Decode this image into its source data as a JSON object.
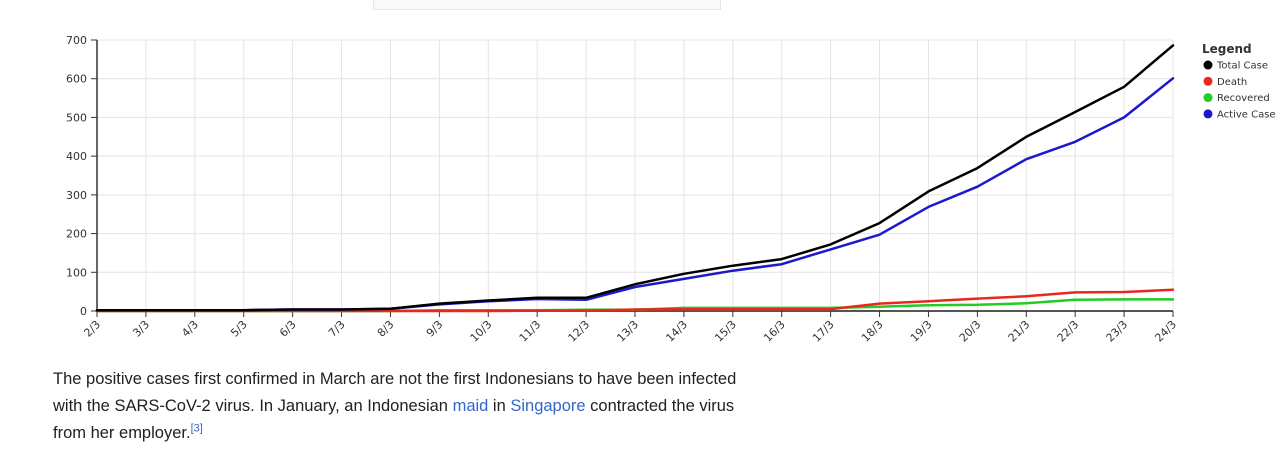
{
  "chart_data": {
    "type": "line",
    "title": "",
    "xlabel": "",
    "ylabel": "",
    "categories": [
      "2/3",
      "3/3",
      "4/3",
      "5/3",
      "6/3",
      "7/3",
      "8/3",
      "9/3",
      "10/3",
      "11/3",
      "12/3",
      "13/3",
      "14/3",
      "15/3",
      "16/3",
      "17/3",
      "18/3",
      "19/3",
      "20/3",
      "21/3",
      "22/3",
      "23/3",
      "24/3"
    ],
    "ylim": [
      0,
      700
    ],
    "yticks": [
      0,
      100,
      200,
      300,
      400,
      500,
      600,
      700
    ],
    "grid": true,
    "legend": {
      "title": "Legend",
      "position": "right"
    },
    "series": [
      {
        "name": "Total Case",
        "color": "#000000",
        "values": [
          2,
          2,
          2,
          2,
          4,
          4,
          6,
          19,
          27,
          34,
          34,
          69,
          96,
          117,
          134,
          172,
          227,
          309,
          369,
          450,
          514,
          579,
          686
        ]
      },
      {
        "name": "Death",
        "color": "#e8281d",
        "values": [
          0,
          0,
          0,
          0,
          0,
          0,
          0,
          0,
          0,
          1,
          1,
          4,
          5,
          5,
          5,
          5,
          19,
          25,
          32,
          38,
          48,
          49,
          55
        ]
      },
      {
        "name": "Recovered",
        "color": "#22cc22",
        "values": [
          0,
          0,
          0,
          0,
          0,
          0,
          0,
          2,
          2,
          2,
          3,
          3,
          8,
          8,
          8,
          8,
          11,
          15,
          16,
          20,
          29,
          30,
          30
        ]
      },
      {
        "name": "Active Case",
        "color": "#1a1acc",
        "values": [
          2,
          2,
          2,
          2,
          4,
          4,
          6,
          17,
          25,
          31,
          29,
          62,
          83,
          104,
          121,
          159,
          197,
          269,
          321,
          392,
          437,
          500,
          601
        ]
      }
    ]
  },
  "caption": {
    "text_1": "The positive cases first confirmed in March are not the first Indonesians to have been infected with the SARS-CoV-2 virus. In January, an Indonesian ",
    "link_maid": "maid",
    "text_2": " in ",
    "link_singapore": "Singapore",
    "text_3": " contracted the virus from her employer.",
    "ref": "[3]"
  }
}
